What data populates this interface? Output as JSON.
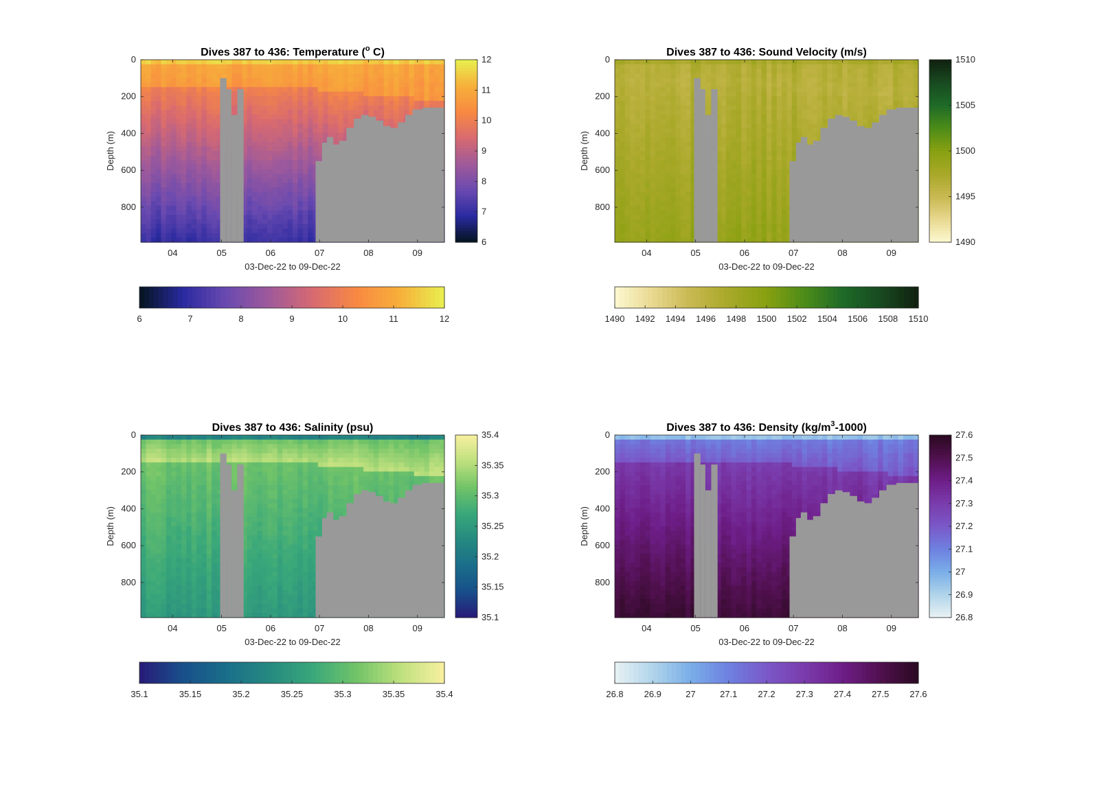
{
  "chart_data": [
    {
      "type": "heatmap",
      "title_prefix": "Dives 387 to 436: ",
      "title_main": "Temperature (",
      "title_sup": "o",
      "title_tail": " C)",
      "xlabel": "03-Dec-22 to 09-Dec-22",
      "ylabel": "Depth (m)",
      "x_ticks": [
        "04",
        "05",
        "06",
        "07",
        "08",
        "09"
      ],
      "y_ticks": [
        "0",
        "200",
        "400",
        "600",
        "800"
      ],
      "ylim": [
        0,
        990
      ],
      "xlim": [
        3.35,
        9.55
      ],
      "clim": [
        6,
        12
      ],
      "vcb_ticks": [
        "12",
        "11",
        "10",
        "9",
        "8",
        "7",
        "6"
      ],
      "hcb_ticks": [
        "6",
        "7",
        "8",
        "9",
        "10",
        "11",
        "12"
      ],
      "colormap": [
        "#05141f",
        "#2a2aa0",
        "#6a4ab0",
        "#a05a9a",
        "#d86a70",
        "#f88a42",
        "#f7b03a",
        "#e8f050"
      ],
      "description_layers": {
        "surface": 11.5,
        "upper": 10.6,
        "deep_top": 10.0,
        "deep_bottom": 7.0
      }
    },
    {
      "type": "heatmap",
      "title_prefix": "Dives 387 to 436: ",
      "title_main": "Sound Velocity (m/s)",
      "title_sup": "",
      "title_tail": "",
      "xlabel": "03-Dec-22 to 09-Dec-22",
      "ylabel": "Depth (m)",
      "x_ticks": [
        "04",
        "05",
        "06",
        "07",
        "08",
        "09"
      ],
      "y_ticks": [
        "0",
        "200",
        "400",
        "600",
        "800"
      ],
      "ylim": [
        0,
        990
      ],
      "xlim": [
        3.35,
        9.55
      ],
      "clim": [
        1490,
        1510
      ],
      "vcb_ticks": [
        "1510",
        "1505",
        "1500",
        "1495",
        "1490"
      ],
      "hcb_ticks": [
        "1490",
        "1492",
        "1494",
        "1496",
        "1498",
        "1500",
        "1502",
        "1504",
        "1506",
        "1508",
        "1510"
      ],
      "colormap": [
        "#fdf8d0",
        "#e8d890",
        "#c8b850",
        "#a8a828",
        "#88a010",
        "#4c8c18",
        "#1e6a28",
        "#184a20",
        "#10200f"
      ],
      "description_layers": {
        "surface": 1497.5,
        "upper": 1496.2,
        "deep_top": 1496.5,
        "deep_bottom": 1499.0
      }
    },
    {
      "type": "heatmap",
      "title_prefix": "Dives 387 to 436: ",
      "title_main": "Salinity (psu)",
      "title_sup": "",
      "title_tail": "",
      "xlabel": "03-Dec-22 to 09-Dec-22",
      "ylabel": "Depth (m)",
      "x_ticks": [
        "04",
        "05",
        "06",
        "07",
        "08",
        "09"
      ],
      "y_ticks": [
        "0",
        "200",
        "400",
        "600",
        "800"
      ],
      "ylim": [
        0,
        990
      ],
      "xlim": [
        3.35,
        9.55
      ],
      "clim": [
        35.1,
        35.4
      ],
      "vcb_ticks": [
        "35.4",
        "35.35",
        "35.3",
        "35.25",
        "35.2",
        "35.15",
        "35.1"
      ],
      "hcb_ticks": [
        "35.1",
        "35.15",
        "35.2",
        "35.25",
        "35.3",
        "35.35",
        "35.4"
      ],
      "colormap": [
        "#281a78",
        "#18508a",
        "#1a6e8a",
        "#268a80",
        "#3aa87a",
        "#72c468",
        "#bfe07e",
        "#f8f0a0"
      ],
      "description_layers": {
        "surface": 35.22,
        "upper": 35.36,
        "deep_top": 35.31,
        "deep_bottom": 35.25
      }
    },
    {
      "type": "heatmap",
      "title_prefix": "Dives 387 to 436: ",
      "title_main": "Density (kg/m",
      "title_sup": "3",
      "title_tail": "-1000)",
      "xlabel": "03-Dec-22 to 09-Dec-22",
      "ylabel": "Depth (m)",
      "x_ticks": [
        "04",
        "05",
        "06",
        "07",
        "08",
        "09"
      ],
      "y_ticks": [
        "0",
        "200",
        "400",
        "600",
        "800"
      ],
      "ylim": [
        0,
        990
      ],
      "xlim": [
        3.35,
        9.55
      ],
      "clim": [
        26.8,
        27.6
      ],
      "vcb_ticks": [
        "27.6",
        "27.5",
        "27.4",
        "27.3",
        "27.2",
        "27.1",
        "27",
        "26.9",
        "26.8"
      ],
      "hcb_ticks": [
        "26.8",
        "26.9",
        "27",
        "27.1",
        "27.2",
        "27.3",
        "27.4",
        "27.5",
        "27.6"
      ],
      "colormap": [
        "#e8f2f2",
        "#b0d4ea",
        "#7aaee8",
        "#6e80e0",
        "#7a58c8",
        "#7a3cac",
        "#6e1e88",
        "#50104e",
        "#2a0a20"
      ],
      "description_layers": {
        "surface": 26.95,
        "upper": 27.2,
        "deep_top": 27.3,
        "deep_bottom": 27.55
      }
    }
  ],
  "no_data_color": "#999999",
  "no_data_regions_by_day": {
    "gap_start": 4.97,
    "gap_end": 5.45,
    "gap_spikes": [
      [
        4.97,
        5.1,
        100
      ],
      [
        5.1,
        5.2,
        160
      ],
      [
        5.2,
        5.32,
        300
      ],
      [
        5.32,
        5.45,
        160
      ]
    ],
    "shelf": [
      [
        6.92,
        550
      ],
      [
        7.05,
        450
      ],
      [
        7.15,
        420
      ],
      [
        7.28,
        460
      ],
      [
        7.4,
        440
      ],
      [
        7.55,
        370
      ],
      [
        7.7,
        320
      ],
      [
        7.85,
        300
      ],
      [
        8.0,
        310
      ],
      [
        8.15,
        330
      ],
      [
        8.3,
        360
      ],
      [
        8.45,
        370
      ],
      [
        8.6,
        340
      ],
      [
        8.75,
        300
      ],
      [
        8.9,
        270
      ],
      [
        9.1,
        260
      ],
      [
        9.55,
        260
      ]
    ]
  }
}
